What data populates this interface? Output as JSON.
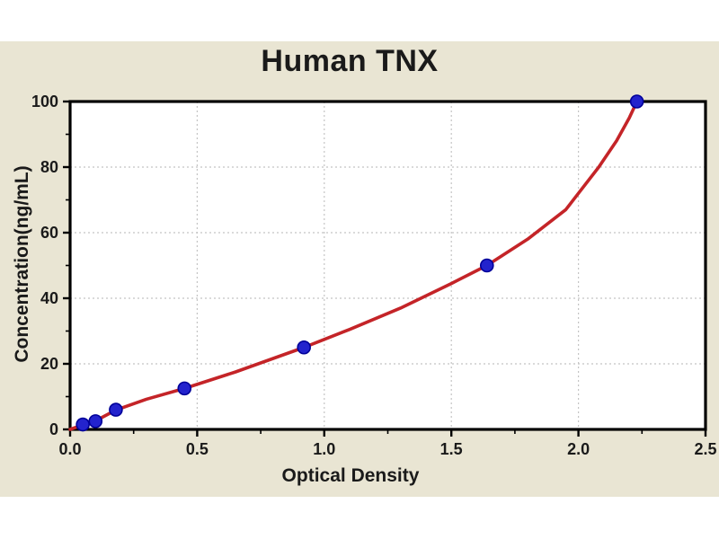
{
  "figure": {
    "background_color": "#ffffff",
    "panel_color": "#e9e5d3"
  },
  "chart_data": {
    "type": "scatter",
    "title": "Human TNX",
    "xlabel": "Optical Density",
    "ylabel": "Concentration(ng/mL)",
    "xlim": [
      0,
      2.5
    ],
    "ylim": [
      0,
      100
    ],
    "x_ticks": [
      "0.0",
      "0.5",
      "1.0",
      "1.5",
      "2.0",
      "2.5"
    ],
    "y_ticks": [
      "0",
      "20",
      "40",
      "60",
      "80",
      "100"
    ],
    "x_minor_step": 0.25,
    "y_minor_step": 10,
    "grid": "dashed gridlines at interior major ticks",
    "legend": null,
    "plot_background": "#ffffff",
    "grid_color": "#c4c4c4",
    "axis_color": "#000000",
    "series": [
      {
        "name": "standard-points",
        "type": "scatter",
        "color": "#2323cd",
        "edge_color": "#000099",
        "points": [
          [
            0.05,
            1.5
          ],
          [
            0.1,
            2.5
          ],
          [
            0.18,
            6
          ],
          [
            0.45,
            12.5
          ],
          [
            0.92,
            25
          ],
          [
            1.64,
            50
          ],
          [
            2.23,
            100
          ]
        ]
      },
      {
        "name": "fitted-curve",
        "type": "line",
        "color": "#c42428",
        "points": [
          [
            0,
            0
          ],
          [
            0.05,
            1.4
          ],
          [
            0.1,
            2.6
          ],
          [
            0.18,
            5.9
          ],
          [
            0.3,
            9.2
          ],
          [
            0.45,
            12.5
          ],
          [
            0.65,
            17.5
          ],
          [
            0.92,
            25
          ],
          [
            1.1,
            30.5
          ],
          [
            1.3,
            37
          ],
          [
            1.5,
            44.5
          ],
          [
            1.64,
            50
          ],
          [
            1.8,
            58
          ],
          [
            1.95,
            67
          ],
          [
            2.0,
            72
          ],
          [
            2.08,
            80
          ],
          [
            2.15,
            88
          ],
          [
            2.2,
            95
          ],
          [
            2.23,
            100
          ]
        ]
      }
    ]
  }
}
